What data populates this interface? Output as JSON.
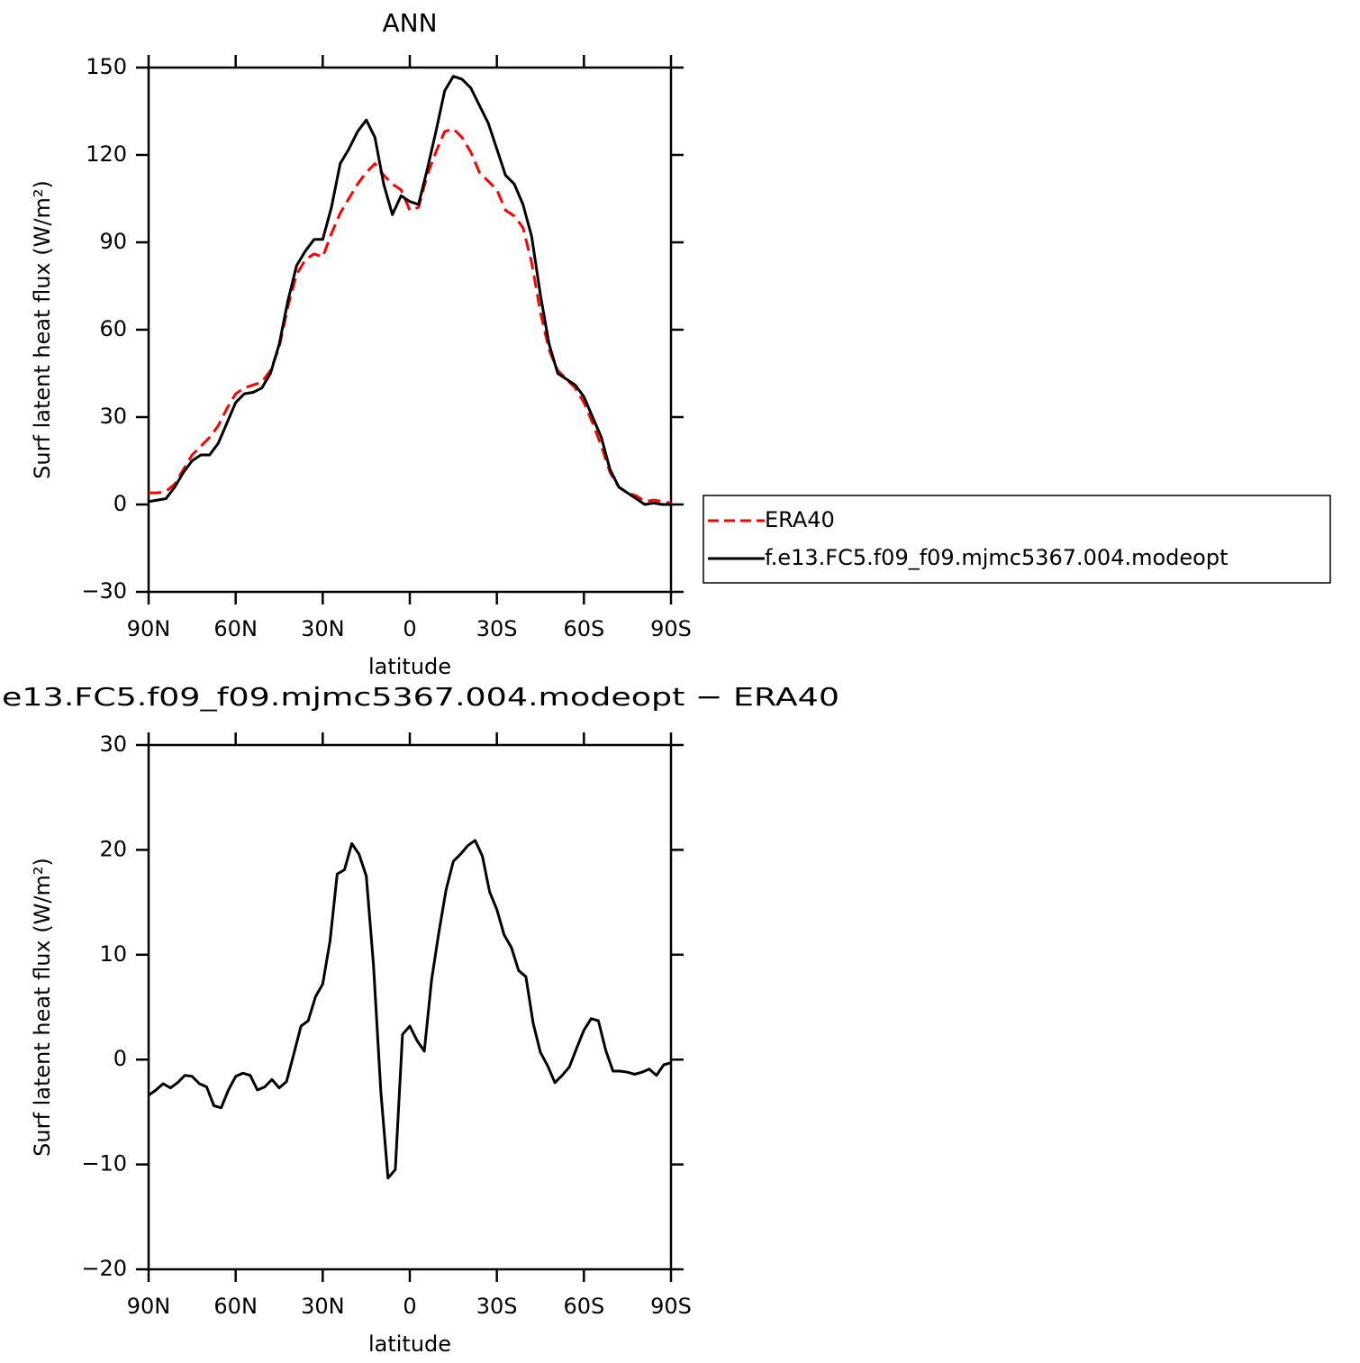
{
  "chart_data": [
    {
      "type": "line",
      "title": "ANN",
      "xlabel": "latitude",
      "ylabel": "Surf latent heat flux (W/m²)",
      "x": [
        90,
        87,
        84,
        81,
        78,
        75,
        72,
        69,
        66,
        63,
        60,
        57,
        54,
        51,
        48,
        45,
        42,
        39,
        36,
        33,
        30,
        27,
        24,
        21,
        18,
        15,
        12,
        9,
        6,
        3,
        0,
        -3,
        -6,
        -9,
        -12,
        -15,
        -18,
        -21,
        -24,
        -27,
        -30,
        -33,
        -36,
        -39,
        -42,
        -45,
        -48,
        -51,
        -54,
        -57,
        -60,
        -63,
        -66,
        -69,
        -72,
        -75,
        -78,
        -81,
        -84,
        -87,
        -90
      ],
      "series": [
        {
          "name": "ERA40",
          "color": "#ff0000",
          "dash": true,
          "values": [
            4,
            4,
            4.5,
            7,
            12,
            17,
            20,
            23,
            27,
            33,
            38,
            40,
            41,
            42,
            46,
            54,
            68,
            79,
            84,
            86,
            85,
            93,
            100,
            105,
            110,
            114,
            117,
            113,
            110,
            108,
            101,
            102,
            113,
            121,
            128,
            129,
            126,
            121,
            114,
            111,
            108,
            101,
            99,
            95,
            83,
            66,
            53,
            46,
            43,
            40,
            35,
            28,
            20,
            11,
            6,
            4,
            3,
            1,
            1.5,
            1,
            0.5
          ]
        },
        {
          "name": "f.e13.FC5.f09_f09.mjmc5367.004.modeopt",
          "color": "#000000",
          "dash": false,
          "values": [
            1,
            1.5,
            2,
            6,
            11,
            15,
            17,
            17,
            21,
            28,
            35,
            38,
            38.5,
            40,
            45,
            55,
            70,
            82,
            87,
            91,
            91,
            102,
            117,
            122,
            128,
            132,
            126,
            110,
            99.5,
            106,
            104,
            103,
            115,
            128,
            142,
            147,
            146,
            143,
            137,
            131,
            122,
            113,
            110,
            103,
            92,
            72,
            55,
            45,
            43,
            41,
            37,
            30,
            23,
            12,
            6,
            4,
            2,
            0,
            0.5,
            0,
            0
          ]
        }
      ],
      "xlim": [
        90,
        -90
      ],
      "xticks": [
        {
          "value": 90,
          "label": "90N"
        },
        {
          "value": 60,
          "label": "60N"
        },
        {
          "value": 30,
          "label": "30N"
        },
        0,
        {
          "value": -30,
          "label": "30S"
        },
        {
          "value": -60,
          "label": "60S"
        },
        {
          "value": -90,
          "label": "90S"
        }
      ],
      "ylim": [
        -30,
        150
      ],
      "yticks": [
        {
          "value": -30,
          "label": "−30"
        },
        0,
        30,
        60,
        90,
        120,
        150
      ],
      "legend": "right"
    },
    {
      "type": "line",
      "title": "e13.FC5.f09_f09.mjmc5367.004.modeopt − ERA40",
      "xlabel": "latitude",
      "ylabel": "Surf latent heat flux (W/m²)",
      "x": [
        90,
        87.5,
        85,
        82.5,
        80,
        77.5,
        75,
        72.5,
        70,
        67.5,
        65,
        62.5,
        60,
        57.5,
        55,
        52.5,
        50,
        47.5,
        45,
        42.5,
        40,
        37.5,
        35,
        32.5,
        30,
        27.5,
        25,
        22.5,
        20,
        17.5,
        15,
        12.5,
        10,
        7.5,
        5,
        2.5,
        0,
        -2.5,
        -5,
        -7.5,
        -10,
        -12.5,
        -15,
        -17.5,
        -20,
        -22.5,
        -25,
        -27.5,
        -30,
        -32.5,
        -35,
        -37.5,
        -40,
        -42.5,
        -45,
        -47.5,
        -50,
        -52.5,
        -55,
        -57.5,
        -60,
        -62.5,
        -65,
        -67.5,
        -70,
        -72.5,
        -75,
        -77.5,
        -80,
        -82.5,
        -85,
        -87.5,
        -90
      ],
      "series": [
        {
          "color": "#000000",
          "dash": false,
          "values": [
            -3.4,
            -2.9,
            -2.3,
            -2.7,
            -2.2,
            -1.5,
            -1.6,
            -2.3,
            -2.6,
            -4.4,
            -4.6,
            -2.9,
            -1.6,
            -1.3,
            -1.5,
            -2.9,
            -2.6,
            -1.9,
            -2.7,
            -2.1,
            0.5,
            3.2,
            3.7,
            6.0,
            7.2,
            11.3,
            17.7,
            18.1,
            20.6,
            19.6,
            17.5,
            9.0,
            -3.0,
            -11.3,
            -10.5,
            2.4,
            3.2,
            1.8,
            0.8,
            7.6,
            12.1,
            16.2,
            18.9,
            19.6,
            20.4,
            20.9,
            19.4,
            16.0,
            14.3,
            11.9,
            10.7,
            8.5,
            7.9,
            3.5,
            0.7,
            -0.6,
            -2.2,
            -1.5,
            -0.7,
            1.1,
            2.8,
            3.9,
            3.7,
            0.9,
            -1.1,
            -1.1,
            -1.2,
            -1.4,
            -1.2,
            -0.9,
            -1.5,
            -0.5,
            -0.3
          ]
        }
      ],
      "xlim": [
        90,
        -90
      ],
      "xticks": [
        {
          "value": 90,
          "label": "90N"
        },
        {
          "value": 60,
          "label": "60N"
        },
        {
          "value": 30,
          "label": "30N"
        },
        0,
        {
          "value": -30,
          "label": "30S"
        },
        {
          "value": -60,
          "label": "60S"
        },
        {
          "value": -90,
          "label": "90S"
        }
      ],
      "ylim": [
        -20,
        30
      ],
      "yticks": [
        {
          "value": -20,
          "label": "−20"
        },
        {
          "value": -10,
          "label": "−10"
        },
        0,
        10,
        20,
        30
      ]
    }
  ]
}
